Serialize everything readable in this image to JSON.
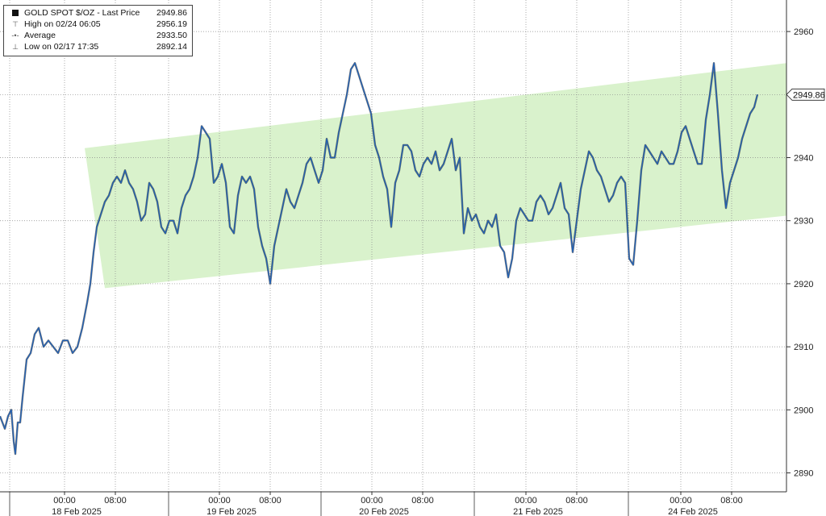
{
  "legend": {
    "title": "GOLD SPOT $/OZ - Last Price",
    "last_value": "2949.86",
    "rows": [
      {
        "label": "High on 02/24 06:05",
        "value": "2956.19",
        "icon": "high-marker-icon",
        "glyph": "⊤"
      },
      {
        "label": "Average",
        "value": "2933.50",
        "icon": "average-line-icon",
        "glyph": "-•-"
      },
      {
        "label": "Low on 02/17 17:35",
        "value": "2892.14",
        "icon": "low-marker-icon",
        "glyph": "⊥"
      }
    ]
  },
  "last_price_tag": "2949.86",
  "colors": {
    "line": "#1f5fb4",
    "channel": "#d9f2cc",
    "grid": "#888888",
    "axis": "#333333"
  },
  "chart_data": {
    "type": "line",
    "series": [
      {
        "name": "GOLD SPOT $/OZ - Last Price",
        "x": [
          0,
          6,
          10,
          14,
          17,
          19,
          22,
          25,
          28,
          33,
          38,
          43,
          48,
          54,
          60,
          66,
          72,
          78,
          84,
          90,
          96,
          102,
          108,
          112,
          116,
          120,
          125,
          130,
          135,
          140,
          145,
          150,
          155,
          160,
          165,
          170,
          175,
          180,
          185,
          190,
          195,
          200,
          205,
          210,
          215,
          220,
          225,
          230,
          235,
          240,
          245,
          250,
          255,
          260,
          265,
          270,
          275,
          280,
          285,
          290,
          295,
          300,
          305,
          310,
          315,
          320,
          325,
          330,
          335,
          340,
          345,
          350,
          355,
          360,
          365,
          370,
          375,
          380,
          385,
          390,
          395,
          400,
          405,
          410,
          415,
          420,
          425,
          430,
          435,
          440,
          445,
          450,
          455,
          460,
          465,
          470,
          475,
          480,
          485,
          490,
          495,
          500,
          505,
          510,
          515,
          520,
          525,
          530,
          535,
          540,
          545,
          550,
          555,
          560,
          565,
          570,
          575,
          580,
          585,
          590,
          595,
          600,
          605,
          610,
          615,
          620,
          625,
          630,
          635,
          640,
          645,
          650,
          655,
          660,
          665,
          670,
          675,
          680,
          685,
          690,
          695,
          700,
          705,
          710,
          715,
          720,
          725,
          730,
          735,
          740,
          745,
          750,
          755,
          760,
          765,
          770,
          775,
          780,
          785,
          790,
          795,
          800,
          805,
          810,
          815,
          820,
          825,
          830,
          835,
          840,
          845,
          850,
          855,
          860,
          865,
          870,
          875,
          880,
          885,
          890,
          895,
          900,
          905,
          910,
          915,
          920,
          925,
          930,
          935,
          939
        ],
        "y": [
          2899,
          2897,
          2899,
          2900,
          2895,
          2893,
          2898,
          2898,
          2902,
          2908,
          2909,
          2912,
          2913,
          2910,
          2911,
          2910,
          2909,
          2911,
          2911,
          2909,
          2910,
          2913,
          2917,
          2920,
          2925,
          2929,
          2931,
          2933,
          2934,
          2936,
          2937,
          2936,
          2938,
          2936,
          2935,
          2933,
          2930,
          2931,
          2936,
          2935,
          2933,
          2929,
          2928,
          2930,
          2930,
          2928,
          2932,
          2934,
          2935,
          2937,
          2940,
          2945,
          2944,
          2943,
          2936,
          2937,
          2939,
          2936,
          2929,
          2928,
          2934,
          2937,
          2936,
          2937,
          2935,
          2929,
          2926,
          2924,
          2920,
          2926,
          2929,
          2932,
          2935,
          2933,
          2932,
          2934,
          2936,
          2939,
          2940,
          2938,
          2936,
          2938,
          2943,
          2940,
          2940,
          2944,
          2947,
          2950,
          2954,
          2955,
          2953,
          2951,
          2949,
          2947,
          2942,
          2940,
          2937,
          2935,
          2929,
          2936,
          2938,
          2942,
          2942,
          2941,
          2938,
          2937,
          2939,
          2940,
          2939,
          2941,
          2938,
          2939,
          2941,
          2943,
          2938,
          2940,
          2928,
          2932,
          2930,
          2931,
          2929,
          2928,
          2930,
          2929,
          2931,
          2926,
          2925,
          2921,
          2924,
          2930,
          2932,
          2931,
          2930,
          2930,
          2933,
          2934,
          2933,
          2931,
          2932,
          2934,
          2936,
          2932,
          2931,
          2925,
          2930,
          2935,
          2938,
          2941,
          2940,
          2938,
          2937,
          2935,
          2933,
          2934,
          2936,
          2937,
          2936,
          2924,
          2923,
          2930,
          2938,
          2942,
          2941,
          2940,
          2939,
          2941,
          2940,
          2939,
          2939,
          2941,
          2944,
          2945,
          2943,
          2941,
          2939,
          2939,
          2946,
          2950,
          2955,
          2947,
          2938,
          2932,
          2936,
          2938,
          2940,
          2943,
          2945,
          2947,
          2948,
          2950
        ]
      }
    ],
    "channel": {
      "upper": [
        2941.5,
        2955.0
      ],
      "lower": [
        2919.3,
        2930.8
      ],
      "x": [
        100,
        975
      ]
    },
    "x_ticks": [
      {
        "x": 80,
        "label": "00:00"
      },
      {
        "x": 143,
        "label": "08:00"
      },
      {
        "x": 272,
        "label": "00:00"
      },
      {
        "x": 335,
        "label": "08:00"
      },
      {
        "x": 461,
        "label": "00:00"
      },
      {
        "x": 524,
        "label": "08:00"
      },
      {
        "x": 652,
        "label": "00:00"
      },
      {
        "x": 715,
        "label": "08:00"
      },
      {
        "x": 844,
        "label": "00:00"
      },
      {
        "x": 907,
        "label": "08:00"
      }
    ],
    "day_labels": [
      {
        "x": 95,
        "label": "18 Feb 2025"
      },
      {
        "x": 287,
        "label": "19 Feb 2025"
      },
      {
        "x": 476,
        "label": "20 Feb 2025"
      },
      {
        "x": 667,
        "label": "21 Feb 2025"
      },
      {
        "x": 859,
        "label": "24 Feb 2025"
      }
    ],
    "day_separators": [
      12,
      209,
      398,
      588,
      779
    ],
    "y_ticks": [
      2890,
      2900,
      2910,
      2920,
      2930,
      2940,
      2950,
      2960
    ],
    "y_tick_labels": [
      "2890",
      "2900",
      "2910",
      "2920",
      "2930",
      "2940",
      "",
      "2960"
    ],
    "ylim": [
      2887.0,
      2965.0
    ],
    "xlim": [
      0,
      975
    ],
    "grid": true,
    "legend_position": "top-left",
    "y_axis_side": "right"
  }
}
